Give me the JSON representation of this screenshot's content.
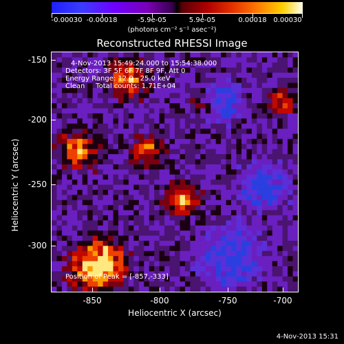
{
  "colorbar": {
    "labels": [
      "-0.00030",
      "-0.00018",
      "-5.9e-05",
      "5.9e-05",
      "0.00018",
      "0.00030"
    ],
    "unit": "(photons cm⁻² s⁻¹ asec⁻²)"
  },
  "title": "Reconstructed RHESSI Image",
  "info": {
    "time": "4-Nov-2013 15:49:24.000 to 15:54:38.000",
    "detectors": "Detectors: 3F 5F 6F 7F 8F 9F, Att 0",
    "energy": "Energy Range: 12.0 - 25.0 keV",
    "clean": "Clean     Total counts: 1.71E+04",
    "peak": "Position of Peak = [-857,-333]"
  },
  "axes": {
    "x_title": "Heliocentric X (arcsec)",
    "y_title": "Heliocentric Y (arcsec)",
    "x_ticks": [
      "-850",
      "-800",
      "-750",
      "-700"
    ],
    "y_ticks": [
      "-150",
      "-200",
      "-250",
      "-300"
    ]
  },
  "timestamp": "4-Nov-2013 15:31",
  "colors": {
    "background": "#000000",
    "foreground": "#ffffff"
  }
}
